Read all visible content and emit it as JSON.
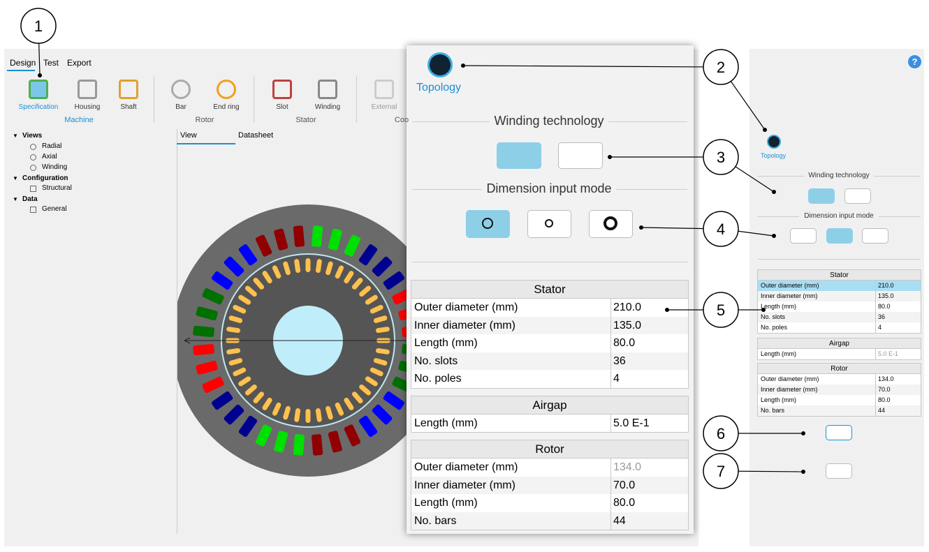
{
  "callouts": [
    "1",
    "2",
    "3",
    "4",
    "5",
    "6",
    "7"
  ],
  "tabs": [
    "Design",
    "Test",
    "Export"
  ],
  "ribbon": {
    "buttons": [
      "Specification",
      "Housing",
      "Shaft",
      "Bar",
      "End ring",
      "Slot",
      "Winding",
      "External"
    ],
    "groups": [
      "Machine",
      "Rotor",
      "Stator",
      "Coo"
    ]
  },
  "tree": {
    "sections": [
      "Views",
      "Configuration",
      "Data"
    ],
    "items": [
      "Radial",
      "Axial",
      "Winding",
      "Structural",
      "General"
    ]
  },
  "view_tabs": [
    "View",
    "Datasheet"
  ],
  "panel": {
    "topology": "Topology",
    "winding_technology": "Winding technology",
    "dimension_input_mode": "Dimension input mode"
  },
  "stator": {
    "title": "Stator",
    "rows": [
      [
        "Outer diameter (mm)",
        "210.0"
      ],
      [
        "Inner diameter (mm)",
        "135.0"
      ],
      [
        "Length (mm)",
        "80.0"
      ],
      [
        "No. slots",
        "36"
      ],
      [
        "No. poles",
        "4"
      ]
    ]
  },
  "airgap": {
    "title": "Airgap",
    "rows": [
      [
        "Length (mm)",
        "5.0 E-1"
      ]
    ]
  },
  "rotor": {
    "title": "Rotor",
    "rows": [
      [
        "Outer diameter (mm)",
        "134.0"
      ],
      [
        "Inner diameter (mm)",
        "70.0"
      ],
      [
        "Length (mm)",
        "80.0"
      ],
      [
        "No. bars",
        "44"
      ]
    ]
  },
  "help": "?"
}
